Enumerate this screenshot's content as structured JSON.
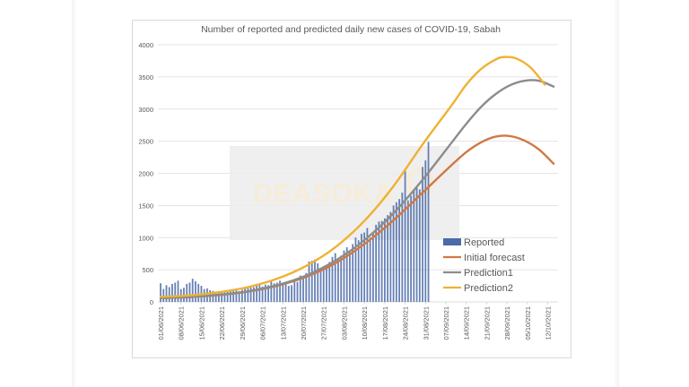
{
  "chart_data": {
    "type": "bar+line",
    "title": "Number of reported and predicted daily new cases of COVID-19, Sabah",
    "xlabel": "",
    "ylabel": "",
    "ylim": [
      0,
      4000
    ],
    "yticks": [
      0,
      500,
      1000,
      1500,
      2000,
      2500,
      3000,
      3500,
      4000
    ],
    "xticks": [
      "01/06/2021",
      "08/06/2021",
      "15/06/2021",
      "22/06/2021",
      "29/06/2021",
      "06/07/2021",
      "13/07/2021",
      "20/07/2021",
      "27/07/2021",
      "03/08/2021",
      "10/08/2021",
      "17/08/2021",
      "24/08/2021",
      "31/08/2021",
      "07/09/2021",
      "14/09/2021",
      "21/09/2021",
      "28/09/2021",
      "05/10/2021",
      "12/10/2021"
    ],
    "x_start": "01/06/2021",
    "x_days": 137,
    "grid": "horizontal",
    "legend_position": "bottom-right",
    "watermark": "DEASOKA",
    "series": [
      {
        "name": "Reported",
        "type": "bar",
        "color": "#4a6aa8",
        "start_day": 0,
        "values": [
          290,
          200,
          260,
          230,
          280,
          300,
          330,
          200,
          220,
          280,
          300,
          360,
          320,
          280,
          250,
          200,
          210,
          180,
          170,
          140,
          160,
          150,
          170,
          160,
          180,
          200,
          180,
          170,
          190,
          210,
          220,
          250,
          230,
          280,
          260,
          240,
          270,
          260,
          320,
          290,
          300,
          330,
          270,
          300,
          250,
          260,
          350,
          310,
          410,
          380,
          450,
          630,
          640,
          660,
          600,
          470,
          520,
          560,
          620,
          700,
          760,
          680,
          720,
          800,
          850,
          780,
          900,
          1000,
          960,
          1060,
          1080,
          1150,
          1000,
          1080,
          1200,
          1250,
          1260,
          1300,
          1350,
          1400,
          1500,
          1550,
          1600,
          1700,
          2040,
          1580,
          1650,
          1750,
          1800,
          1750,
          2100,
          2200,
          2490
        ]
      },
      {
        "name": "Initial forecast",
        "type": "line",
        "color": "#d07845",
        "points": [
          [
            0,
            60
          ],
          [
            10,
            75
          ],
          [
            20,
            105
          ],
          [
            30,
            160
          ],
          [
            40,
            250
          ],
          [
            50,
            390
          ],
          [
            60,
            600
          ],
          [
            70,
            900
          ],
          [
            80,
            1270
          ],
          [
            90,
            1700
          ],
          [
            100,
            2130
          ],
          [
            105,
            2330
          ],
          [
            110,
            2480
          ],
          [
            115,
            2570
          ],
          [
            120,
            2580
          ],
          [
            125,
            2510
          ],
          [
            130,
            2370
          ],
          [
            135,
            2150
          ],
          [
            140,
            1870
          ],
          [
            145,
            1550
          ]
        ]
      },
      {
        "name": "Prediction1",
        "type": "line",
        "color": "#8c8c8c",
        "points": [
          [
            0,
            60
          ],
          [
            10,
            75
          ],
          [
            20,
            110
          ],
          [
            30,
            165
          ],
          [
            40,
            260
          ],
          [
            50,
            410
          ],
          [
            60,
            640
          ],
          [
            70,
            960
          ],
          [
            80,
            1380
          ],
          [
            90,
            1900
          ],
          [
            100,
            2480
          ],
          [
            105,
            2770
          ],
          [
            110,
            3030
          ],
          [
            115,
            3230
          ],
          [
            120,
            3370
          ],
          [
            125,
            3440
          ],
          [
            130,
            3440
          ],
          [
            135,
            3350
          ],
          [
            140,
            3170
          ],
          [
            145,
            2900
          ],
          [
            150,
            2560
          ]
        ]
      },
      {
        "name": "Prediction2",
        "type": "line",
        "color": "#f0b132",
        "points": [
          [
            0,
            80
          ],
          [
            10,
            100
          ],
          [
            20,
            150
          ],
          [
            30,
            230
          ],
          [
            40,
            360
          ],
          [
            50,
            560
          ],
          [
            60,
            850
          ],
          [
            70,
            1260
          ],
          [
            80,
            1800
          ],
          [
            90,
            2450
          ],
          [
            100,
            3060
          ],
          [
            105,
            3380
          ],
          [
            110,
            3620
          ],
          [
            115,
            3770
          ],
          [
            118,
            3810
          ],
          [
            122,
            3790
          ],
          [
            127,
            3650
          ],
          [
            132,
            3380
          ],
          [
            137,
            3010
          ],
          [
            142,
            2560
          ],
          [
            147,
            2080
          ]
        ]
      }
    ]
  }
}
